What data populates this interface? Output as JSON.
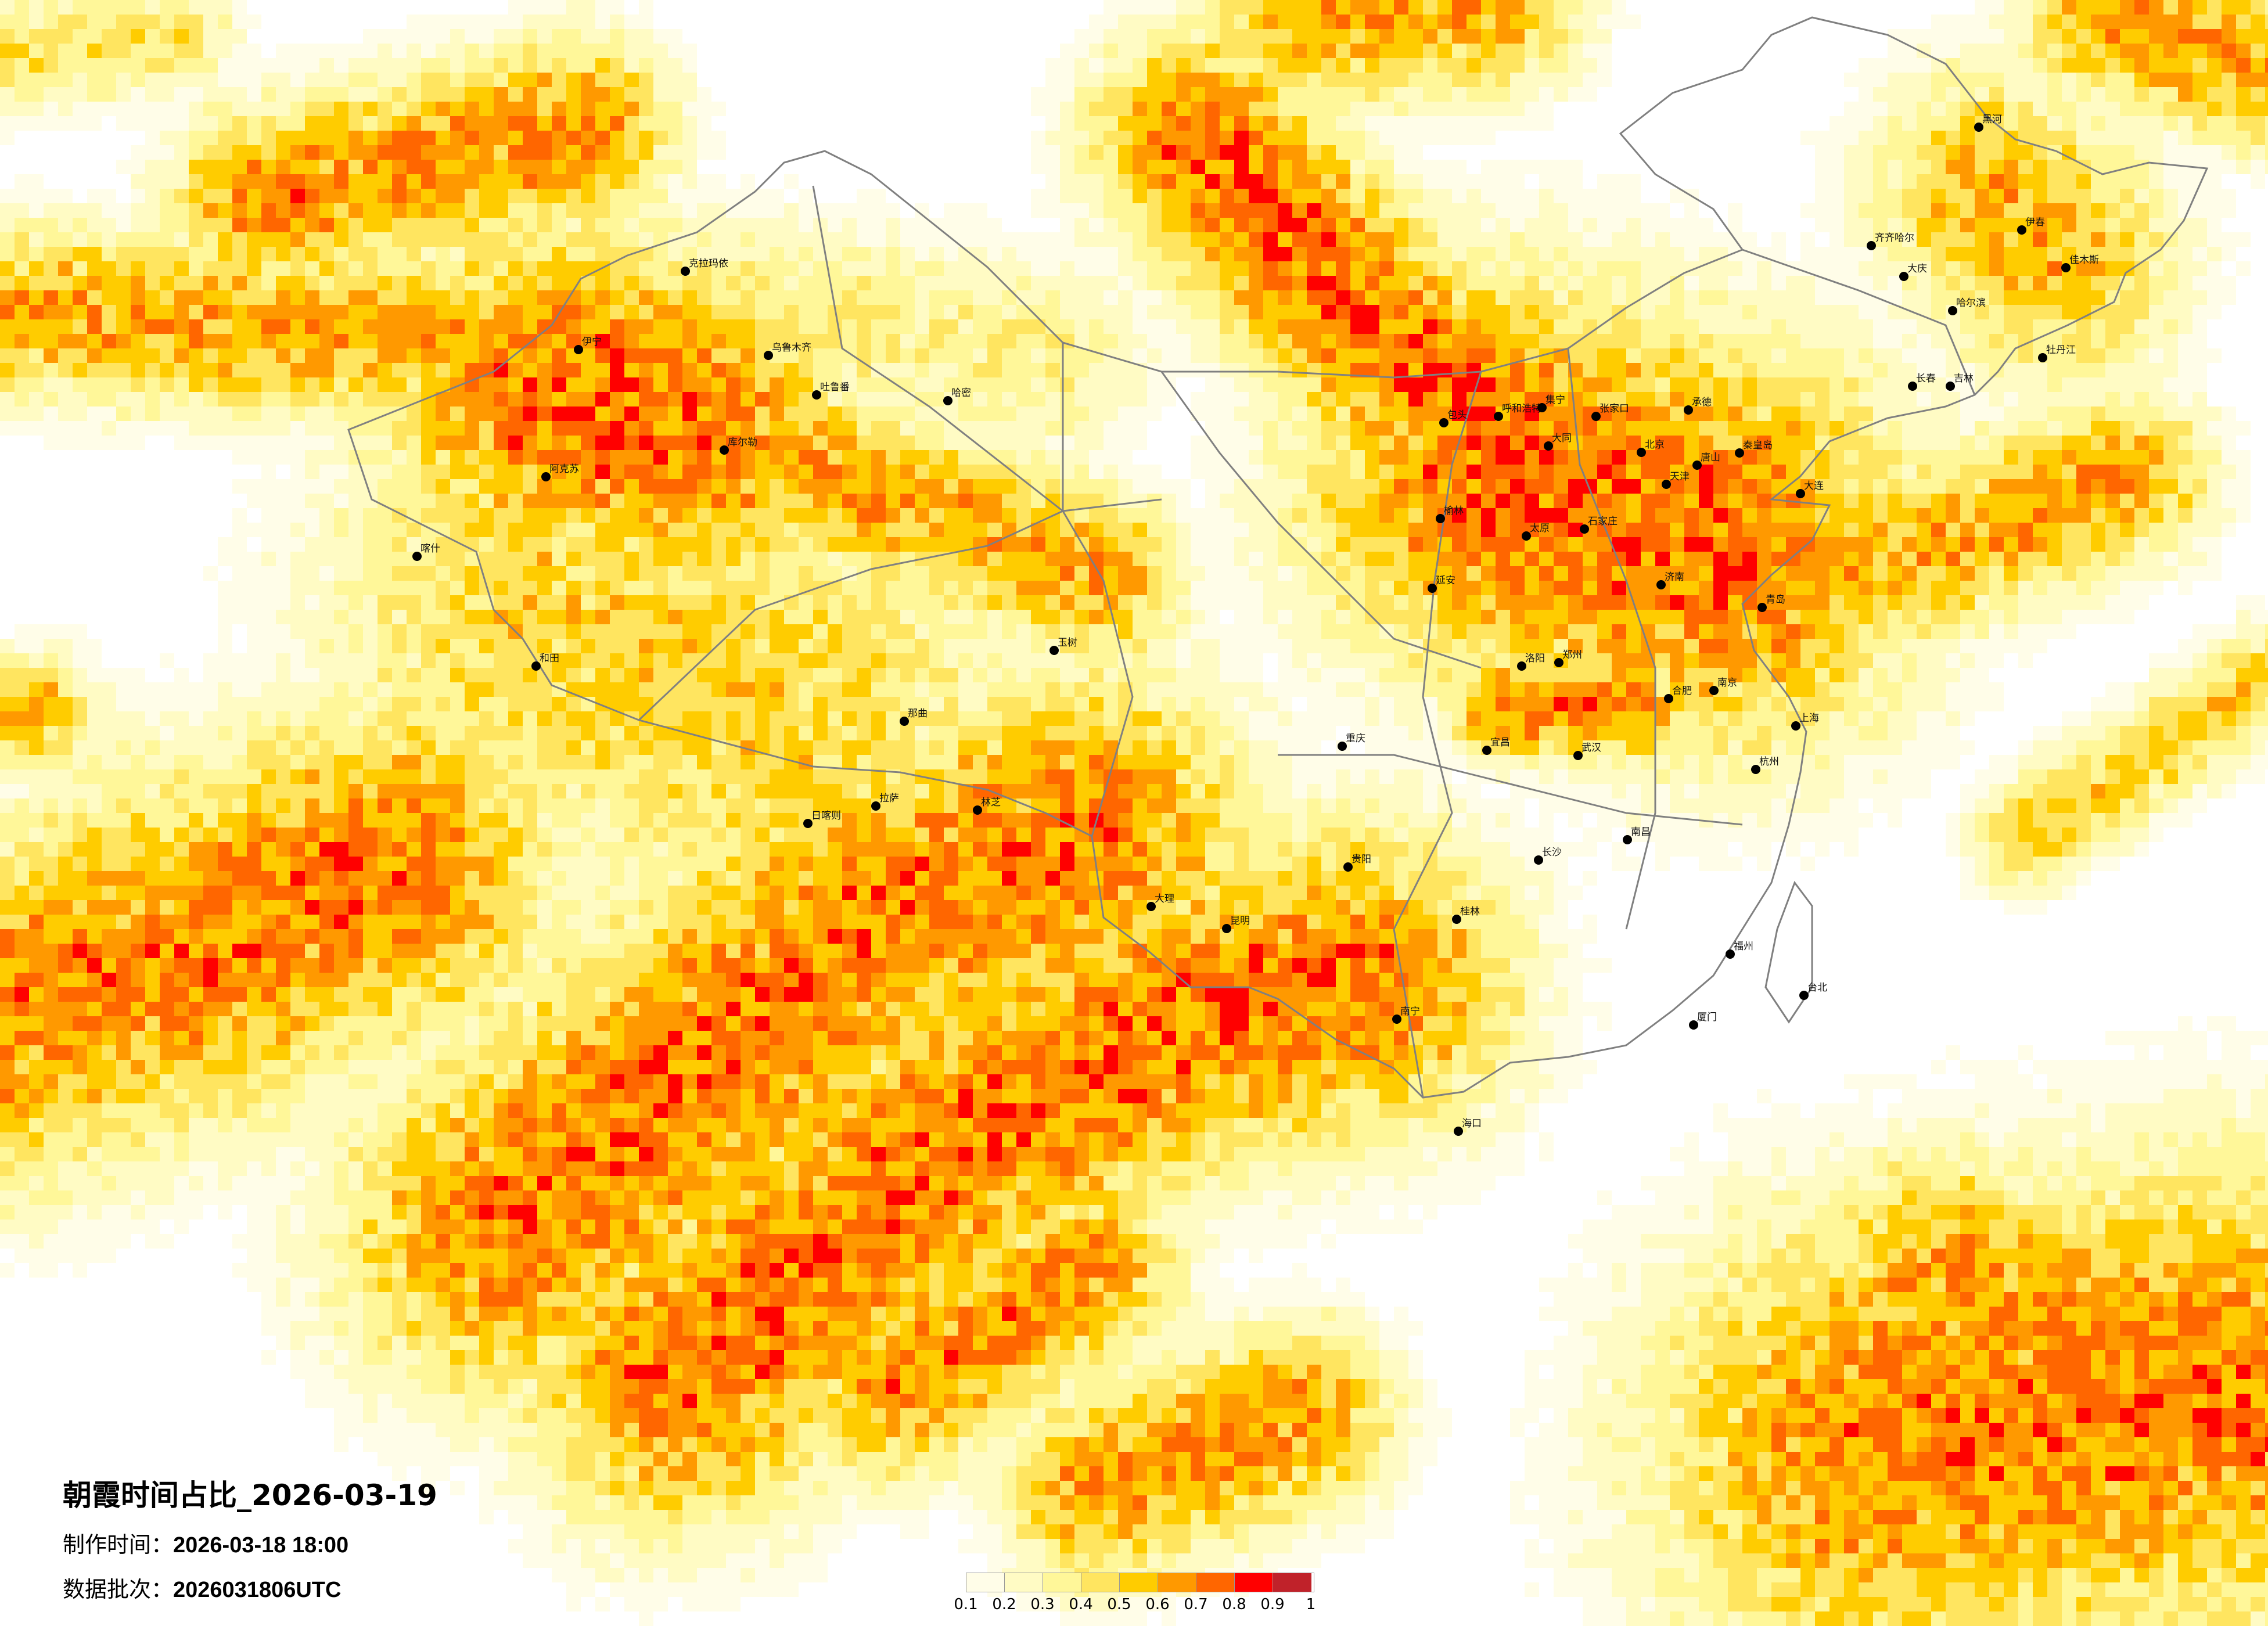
{
  "map": {
    "type": "gridded heatmap over map of China",
    "title": "朝霞时间占比_2026-03-19",
    "production_time_label": "制作时间：",
    "production_time": "2026-03-18 18:00",
    "data_batch_label": "数据批次：",
    "data_batch": "2026031806UTC",
    "border_color": "#808080",
    "city_marker_color": "#000000"
  },
  "legend": {
    "labels": [
      "0.1",
      "0.2",
      "0.3",
      "0.4",
      "0.5",
      "0.6",
      "0.7",
      "0.8",
      "0.9",
      "1"
    ],
    "colors": [
      "#fffde8",
      "#fffbc4",
      "#fff799",
      "#ffe560",
      "#ffcc00",
      "#ff9900",
      "#ff6600",
      "#ff0000",
      "#c0222a"
    ]
  },
  "cities": [
    "北京",
    "天津",
    "石家庄",
    "太原",
    "呼和浩特",
    "包头",
    "集宁",
    "张家口",
    "大同",
    "唐山",
    "承德",
    "秦皇岛",
    "济南",
    "青岛",
    "郑州",
    "洛阳",
    "大连",
    "榆林",
    "延安",
    "哈尔滨",
    "齐齐哈尔",
    "大庆",
    "长春",
    "吉林",
    "黑河",
    "佳木斯",
    "牡丹江",
    "伊春",
    "武汉",
    "南京",
    "上海",
    "杭州",
    "合肥",
    "长沙",
    "南昌",
    "福州",
    "厦门",
    "台北",
    "宜昌",
    "重庆",
    "贵阳",
    "昆明",
    "南宁",
    "海口",
    "桂林",
    "大理",
    "乌鲁木齐",
    "伊宁",
    "克拉玛依",
    "喀什",
    "和田",
    "阿克苏",
    "哈密",
    "库尔勒",
    "吐鲁番",
    "拉萨",
    "日喀则",
    "林芝",
    "那曲",
    "玉树"
  ]
}
